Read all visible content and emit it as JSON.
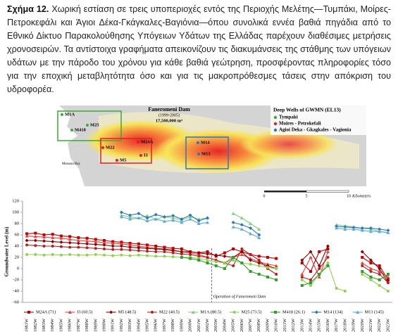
{
  "caption": {
    "label": "Σχήμα 12.",
    "text": "Χωρική εστίαση σε τρεις υποπεριοχές εντός της Περιοχής Μελέτης—Τυμπάκι, Μοίρες-Πετροκεφάλι και Άγιοι Δέκα-Γκάγκαλες-Βαγιόνια—όπου συνολικά εννέα βαθιά πηγάδια από το Εθνικό Δίκτυο Παρακολούθησης Υπόγειων Υδάτων της Ελλάδας παρέχουν διαθέσιμες μετρήσεις χρονοσειρών. Τα αντίστοιχα γραφήματα απεικονίζουν τις διακυμάνσεις της στάθμης των υπόγειων υδάτων με την πάροδο του χρόνου για κάθε βαθιά γεώτρηση, προσφέροντας πληροφορίες τόσο για την εποχική μεταβλητότητα όσο και για τις μακροπρόθεσμες τάσεις στην απόκριση του υδροφορέα."
  },
  "map": {
    "dam": {
      "name": "Faneromeni Dam",
      "period": "(1999-2005)",
      "volume": "17,500,000 m³"
    },
    "legend_title": "Deep Wells of GWMN (EL13)",
    "legend_items": [
      {
        "name": "Tympaki",
        "color": "#3aaa35"
      },
      {
        "name": "Moires - Petrokefali",
        "color": "#e02020"
      },
      {
        "name": "Agioi Deka - Gkagkales - Vagionia",
        "color": "#2e75b6"
      }
    ],
    "wells": [
      "M1A",
      "M25",
      "M418",
      "M24A",
      "M22",
      "M5",
      "I3",
      "M14",
      "M13"
    ],
    "place": "Messara Bay",
    "scale": [
      "0",
      "5",
      "10"
    ],
    "scale_unit": "Kilometers"
  },
  "chart_data": {
    "type": "line",
    "y_label": "Groundwater Level (m)",
    "annotation": "Operation of Faneromeni Dam",
    "categories": [
      "1981W",
      "1982W",
      "1983W",
      "1984W",
      "1985W",
      "1986W",
      "1987W",
      "1988W",
      "1989W",
      "1990W",
      "1991W",
      "1992W",
      "1993W",
      "1994W",
      "1995W",
      "1996W",
      "1997W",
      "1998W",
      "1999W",
      "2000W",
      "2001W",
      "2002W",
      "2003W",
      "2004W",
      "2005W",
      "2006W",
      "2007W",
      "2008W",
      "2009W",
      "2010W",
      "2011W",
      "2012W",
      "2013W",
      "2014W",
      "2015W",
      "2016W",
      "2017W",
      "2018W",
      "2019W",
      "2020W",
      "2021W",
      "2022W",
      "2023W"
    ],
    "ylim": [
      -60,
      120
    ],
    "yticks": [
      -60,
      -40,
      -20,
      0,
      20,
      40,
      60,
      80,
      100,
      120
    ],
    "grid": false,
    "series": [
      {
        "name": "M24A (71)",
        "color": "#c00000",
        "marker": "square",
        "values": [
          62,
          63,
          60,
          61,
          58,
          57,
          55,
          54,
          52,
          50,
          48,
          47,
          45,
          44,
          42,
          40,
          38,
          36,
          35,
          30,
          28,
          30,
          22,
          28,
          35,
          30,
          25,
          22,
          20,
          18,
          null,
          null,
          10,
          -5,
          30,
          35,
          null,
          null,
          null,
          20,
          10,
          5,
          -20
        ]
      },
      {
        "name": "I3 (60.5)",
        "color": "#e84040",
        "marker": "triangle",
        "values": [
          58,
          57,
          56,
          55,
          54,
          52,
          50,
          49,
          48,
          46,
          45,
          44,
          42,
          40,
          38,
          36,
          35,
          33,
          30,
          28,
          25,
          20,
          15,
          10,
          20,
          25,
          18,
          12,
          8,
          5,
          null,
          null,
          -10,
          20,
          -15,
          30,
          null,
          null,
          null,
          10,
          0,
          -5,
          -15
        ]
      },
      {
        "name": "M5 (48.5)",
        "color": "#8b0000",
        "marker": "diamond",
        "values": [
          50,
          50,
          49,
          48,
          47,
          46,
          45,
          44,
          43,
          42,
          40,
          40,
          38,
          37,
          36,
          35,
          34,
          32,
          30,
          30,
          28,
          26,
          24,
          22,
          20,
          30,
          15,
          10,
          5,
          0,
          null,
          null,
          15,
          30,
          5,
          40,
          null,
          null,
          null,
          30,
          15,
          0,
          -25
        ]
      },
      {
        "name": "M22 (40.5)",
        "color": "#b22222",
        "marker": "circle",
        "values": [
          42,
          41,
          40,
          40,
          39,
          38,
          38,
          37,
          36,
          35,
          34,
          34,
          33,
          32,
          31,
          30,
          30,
          28,
          26,
          25,
          22,
          20,
          15,
          10,
          5,
          35,
          25,
          15,
          0,
          -10,
          null,
          null,
          -15,
          -20,
          0,
          20,
          null,
          null,
          null,
          5,
          -5,
          -10,
          -25
        ]
      },
      {
        "name": "M1A (80.5)",
        "color": "#7fcf7f",
        "marker": "triangle",
        "values": [
          null,
          null,
          null,
          null,
          null,
          null,
          null,
          null,
          null,
          null,
          null,
          95,
          92,
          90,
          94,
          88,
          92,
          90,
          86,
          92,
          88,
          90,
          null,
          null,
          98,
          90,
          80,
          70,
          null,
          null,
          null,
          null,
          null,
          null,
          null,
          null,
          78,
          76,
          74,
          72,
          70,
          66,
          64
        ]
      },
      {
        "name": "M25 (73.5)",
        "color": "#92d050",
        "marker": "circle",
        "values": [
          25,
          25,
          24,
          25,
          24,
          25,
          24,
          24,
          25,
          24,
          23,
          24,
          23,
          24,
          23,
          22,
          22,
          21,
          20,
          20,
          18,
          15,
          12,
          10,
          15,
          10,
          8,
          5,
          2,
          0,
          null,
          null,
          -20,
          -30,
          -10,
          10,
          -35,
          -40,
          null,
          -10,
          -20,
          -30,
          -40
        ]
      },
      {
        "name": "M418 (26.1)",
        "color": "#2f9e2f",
        "marker": "square",
        "values": [
          null,
          null,
          null,
          null,
          null,
          null,
          null,
          null,
          null,
          null,
          null,
          null,
          null,
          null,
          null,
          null,
          null,
          null,
          20,
          18,
          15,
          10,
          5,
          0,
          20,
          10,
          -5,
          -10,
          -15,
          -20,
          null,
          null,
          -30,
          -25,
          -10,
          5,
          null,
          null,
          null,
          -5,
          -15,
          -20,
          -10
        ]
      },
      {
        "name": "M14 (134)",
        "color": "#2e75b6",
        "marker": "diamond",
        "values": [
          null,
          null,
          null,
          null,
          null,
          null,
          null,
          null,
          null,
          null,
          null,
          100,
          95,
          98,
          90,
          96,
          92,
          94,
          88,
          95,
          85,
          90,
          null,
          null,
          82,
          78,
          72,
          60,
          null,
          null,
          null,
          null,
          null,
          null,
          null,
          null,
          75,
          74,
          73,
          72,
          72,
          70,
          68
        ]
      },
      {
        "name": "M13 (145)",
        "color": "#5fa8e0",
        "marker": "triangle",
        "values": [
          null,
          null,
          null,
          null,
          null,
          null,
          null,
          null,
          null,
          null,
          null,
          92,
          88,
          90,
          85,
          88,
          84,
          86,
          82,
          88,
          80,
          82,
          null,
          null,
          74,
          70,
          62,
          55,
          null,
          null,
          null,
          null,
          null,
          null,
          null,
          null,
          72,
          70,
          70,
          68,
          66,
          66,
          64
        ]
      }
    ]
  }
}
